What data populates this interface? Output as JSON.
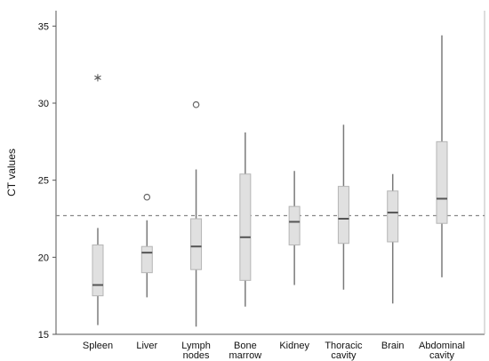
{
  "chart_data": {
    "type": "boxplot",
    "ylabel": "CT values",
    "ylim": [
      15,
      36
    ],
    "yticks": [
      "15",
      "20",
      "25",
      "30",
      "35"
    ],
    "reference_line": 22.7,
    "colors": {
      "box_fill": "#e0e0e0",
      "box_stroke": "#7a7a7a",
      "reference": "#888888"
    },
    "categories": [
      {
        "label_lines": [
          "Spleen"
        ],
        "whisker_low": 15.6,
        "q1": 17.5,
        "median": 18.2,
        "q3": 20.8,
        "whisker_high": 21.9,
        "outliers": [
          {
            "value": 31.7,
            "marker": "star"
          }
        ]
      },
      {
        "label_lines": [
          "Liver"
        ],
        "whisker_low": 17.4,
        "q1": 19.0,
        "median": 20.3,
        "q3": 20.7,
        "whisker_high": 22.4,
        "outliers": [
          {
            "value": 23.9,
            "marker": "circle"
          }
        ]
      },
      {
        "label_lines": [
          "Lymph",
          "nodes"
        ],
        "whisker_low": 15.5,
        "q1": 19.2,
        "median": 20.7,
        "q3": 22.5,
        "whisker_high": 25.7,
        "outliers": [
          {
            "value": 29.9,
            "marker": "circle"
          }
        ]
      },
      {
        "label_lines": [
          "Bone",
          "marrow"
        ],
        "whisker_low": 16.8,
        "q1": 18.5,
        "median": 21.3,
        "q3": 25.4,
        "whisker_high": 28.1,
        "outliers": []
      },
      {
        "label_lines": [
          "Kidney"
        ],
        "whisker_low": 18.2,
        "q1": 20.8,
        "median": 22.3,
        "q3": 23.3,
        "whisker_high": 25.6,
        "outliers": []
      },
      {
        "label_lines": [
          "Thoracic",
          "cavity"
        ],
        "whisker_low": 17.9,
        "q1": 20.9,
        "median": 22.5,
        "q3": 24.6,
        "whisker_high": 28.6,
        "outliers": []
      },
      {
        "label_lines": [
          "Brain"
        ],
        "whisker_low": 17.0,
        "q1": 21.0,
        "median": 22.9,
        "q3": 24.3,
        "whisker_high": 25.4,
        "outliers": []
      },
      {
        "label_lines": [
          "Abdominal",
          "cavity"
        ],
        "whisker_low": 18.7,
        "q1": 22.2,
        "median": 23.8,
        "q3": 27.5,
        "whisker_high": 34.4,
        "outliers": []
      }
    ]
  }
}
